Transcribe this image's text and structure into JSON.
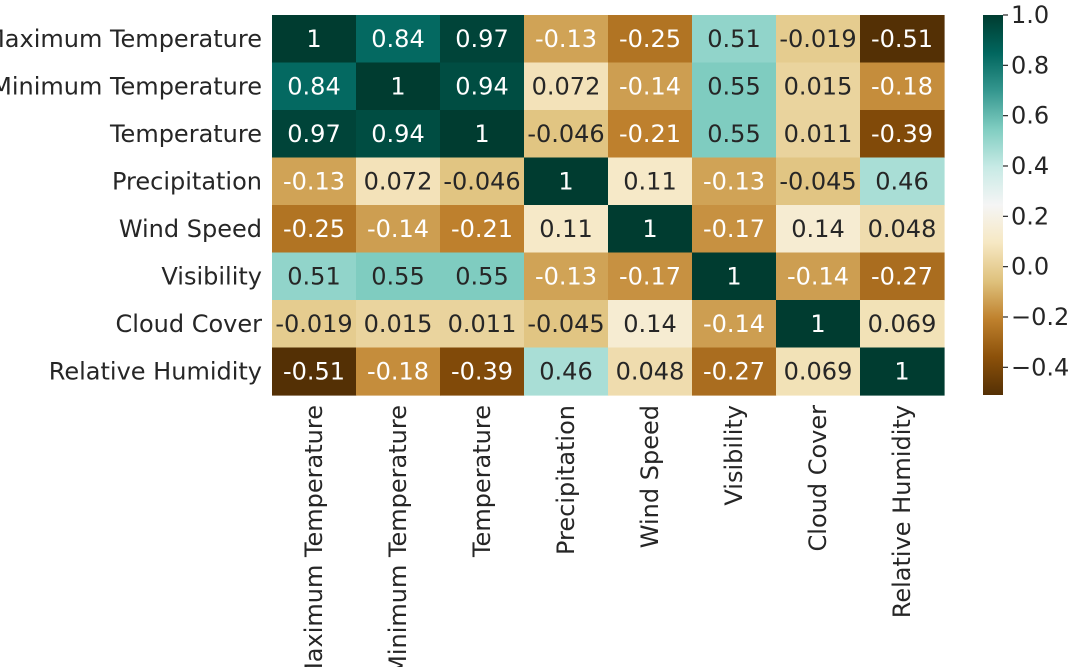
{
  "chart_data": {
    "type": "heatmap",
    "title": "",
    "xlabel": "",
    "ylabel": "",
    "labels": [
      "Maximum Temperature",
      "Minimum Temperature",
      "Temperature",
      "Precipitation",
      "Wind Speed",
      "Visibility",
      "Cloud Cover",
      "Relative Humidity"
    ],
    "values": [
      [
        1,
        0.84,
        0.97,
        -0.13,
        -0.25,
        0.51,
        -0.019,
        -0.51
      ],
      [
        0.84,
        1,
        0.94,
        0.072,
        -0.14,
        0.55,
        0.015,
        -0.18
      ],
      [
        0.97,
        0.94,
        1,
        -0.046,
        -0.21,
        0.55,
        0.011,
        -0.39
      ],
      [
        -0.13,
        0.072,
        -0.046,
        1,
        0.11,
        -0.13,
        -0.045,
        0.46
      ],
      [
        -0.25,
        -0.14,
        -0.21,
        0.11,
        1,
        -0.17,
        0.14,
        0.048
      ],
      [
        0.51,
        0.55,
        0.55,
        -0.13,
        -0.17,
        1,
        -0.14,
        -0.27
      ],
      [
        -0.019,
        0.015,
        0.011,
        -0.045,
        0.14,
        -0.14,
        1,
        0.069
      ],
      [
        -0.51,
        -0.18,
        -0.39,
        0.46,
        0.048,
        -0.27,
        0.069,
        1
      ]
    ],
    "value_labels": [
      [
        "1",
        "0.84",
        "0.97",
        "-0.13",
        "-0.25",
        "0.51",
        "-0.019",
        "-0.51"
      ],
      [
        "0.84",
        "1",
        "0.94",
        "0.072",
        "-0.14",
        "0.55",
        "0.015",
        "-0.18"
      ],
      [
        "0.97",
        "0.94",
        "1",
        "-0.046",
        "-0.21",
        "0.55",
        "0.011",
        "-0.39"
      ],
      [
        "-0.13",
        "0.072",
        "-0.046",
        "1",
        "0.11",
        "-0.13",
        "-0.045",
        "0.46"
      ],
      [
        "-0.25",
        "-0.14",
        "-0.21",
        "0.11",
        "1",
        "-0.17",
        "0.14",
        "0.048"
      ],
      [
        "0.51",
        "0.55",
        "0.55",
        "-0.13",
        "-0.17",
        "1",
        "-0.14",
        "-0.27"
      ],
      [
        "-0.019",
        "0.015",
        "0.011",
        "-0.045",
        "0.14",
        "-0.14",
        "1",
        "0.069"
      ],
      [
        "-0.51",
        "-0.18",
        "-0.39",
        "0.46",
        "0.048",
        "-0.27",
        "0.069",
        "1"
      ]
    ],
    "colormap": "BrBG",
    "colormap_stops": [
      "#543005",
      "#8c510a",
      "#bf812d",
      "#dfc27d",
      "#f6e8c3",
      "#f5f5f5",
      "#c7eae5",
      "#80cdc1",
      "#35978f",
      "#01665e",
      "#003c30"
    ],
    "colorbar": {
      "vmin": -0.51,
      "vmax": 1.0,
      "ticks": [
        1.0,
        0.8,
        0.6,
        0.4,
        0.2,
        0.0,
        -0.2,
        -0.4
      ],
      "tick_labels": [
        "1.0",
        "0.8",
        "0.6",
        "0.4",
        "0.2",
        "0.0",
        "−0.2",
        "−0.4"
      ]
    },
    "grid": false,
    "legend": "colorbar-right",
    "annotation_text_colors": {
      "dark": "#262626",
      "light": "#ffffff"
    }
  }
}
